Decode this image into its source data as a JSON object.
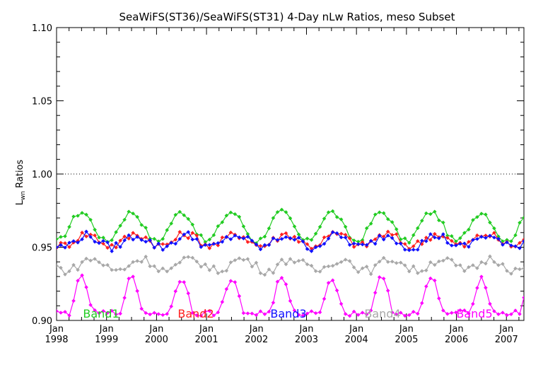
{
  "chart_data": {
    "type": "line",
    "title": "SeaWiFS(ST36)/SeaWiFS(ST31) 4-Day nLw Ratios, meso Subset",
    "ylabel_main": "L",
    "ylabel_sub": "wn",
    "ylabel_rest": " Ratios",
    "xlabel": "",
    "ylim": [
      0.9,
      1.1
    ],
    "xlim": [
      1998.0,
      2007.35
    ],
    "yticks": [
      "0.90",
      "0.95",
      "1.00",
      "1.05",
      "1.10"
    ],
    "xticks_top": [
      "Jan",
      "Jan",
      "Jan",
      "Jan",
      "Jan",
      "Jan",
      "Jan",
      "Jan",
      "Jan",
      "Jan"
    ],
    "xticks_bottom": [
      "1998",
      "1999",
      "2000",
      "2001",
      "2002",
      "2003",
      "2004",
      "2005",
      "2006",
      "2007"
    ],
    "reference_line": 1.0,
    "series": [
      {
        "name": "Band1",
        "color": "#22cc22",
        "base": 0.964,
        "amp": 0.01,
        "phase": 0.5,
        "noise": 0.002
      },
      {
        "name": "Band2",
        "color": "#ff2020",
        "base": 0.955,
        "amp": 0.004,
        "phase": 0.6,
        "noise": 0.003
      },
      {
        "name": "Band3",
        "color": "#1010ff",
        "base": 0.954,
        "amp": 0.004,
        "phase": 0.6,
        "noise": 0.003
      },
      {
        "name": "Band4",
        "color": "#a8a8a8",
        "base": 0.938,
        "amp": 0.004,
        "phase": 0.7,
        "noise": 0.003
      },
      {
        "name": "Band5",
        "color": "#ff00ff",
        "base": 0.905,
        "amp": 0.016,
        "phase": 0.5,
        "noise": 0.002
      }
    ]
  }
}
